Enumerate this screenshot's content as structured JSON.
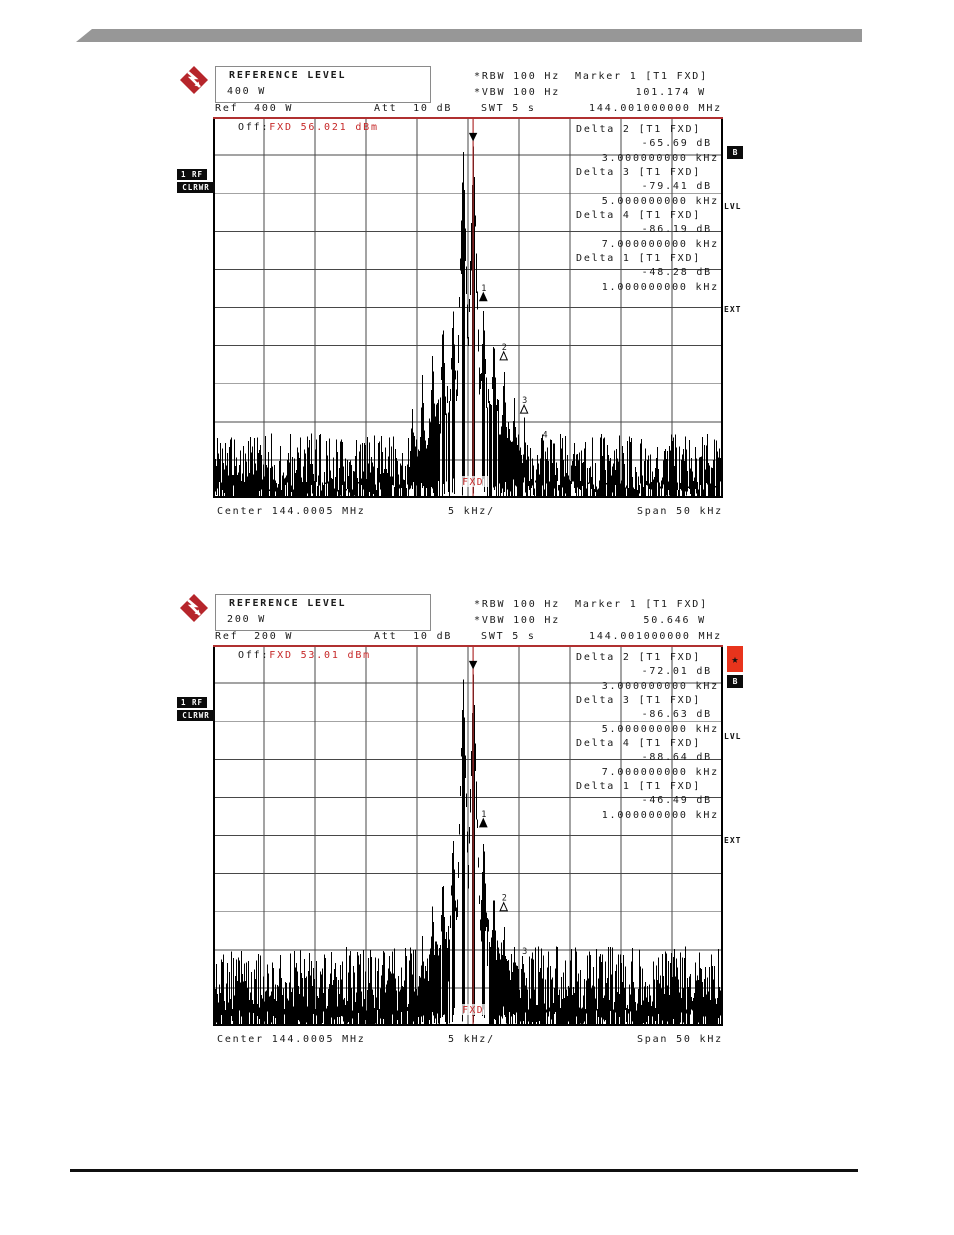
{
  "page": {
    "banner_color": "#979797",
    "footer_rule_color": "#101010",
    "accent_red_line": "#b03030",
    "accent_red_text": "#c62828"
  },
  "charts": [
    {
      "seed": 7,
      "logo_icon": "rohde-schwarz-logo",
      "header": {
        "ref_level_label": "REFERENCE LEVEL",
        "ref_level_value": "400 W",
        "ref_line": "Ref  400 W",
        "att": "Att  10 dB",
        "rbw": "*RBW 100 Hz",
        "vbw": "*VBW 100 Hz",
        "swt": "SWT 5 s",
        "marker_title": "Marker 1 [T1 FXD]",
        "marker_power": "101.174 W",
        "marker_freq": "144.001000000 MHz"
      },
      "off_label": "Off:",
      "off_value": "FXD 56.021 dBm",
      "fxd_label": "FXD",
      "deltas": [
        {
          "name": "Delta 2 [T1 FXD]",
          "db": "-65.69 dB",
          "freq": "3.000000000 kHz"
        },
        {
          "name": "Delta 3 [T1 FXD]",
          "db": "-79.41 dB",
          "freq": "5.000000000 kHz"
        },
        {
          "name": "Delta 4 [T1 FXD]",
          "db": "-86.19 dB",
          "freq": "7.000000000 kHz"
        },
        {
          "name": "Delta 1 [T1 FXD]",
          "db": "-48.28 dB",
          "freq": "1.000000000 kHz"
        }
      ],
      "axis": {
        "center": "Center 144.0005 MHz",
        "per_div": "5 kHz/",
        "span": "Span 50 kHz"
      },
      "side_left": [
        "1 RF",
        "CLRWR"
      ],
      "side_right": {
        "b": "B",
        "lvl": "LVL",
        "ext": "EXT"
      },
      "has_star": false,
      "markers": [
        {
          "n": "1",
          "k": 1.5,
          "db": 48.5,
          "tri": "filled"
        },
        {
          "n": "2",
          "k": 3.5,
          "db": 64,
          "tri": "hollow"
        },
        {
          "n": "3",
          "k": 5.5,
          "db": 78,
          "tri": "hollow"
        },
        {
          "n": "4",
          "k": 7.5,
          "db": 87,
          "tri": "none"
        }
      ],
      "render": {
        "noise": [
          83,
          98
        ],
        "skirt_base": 58,
        "skirt_slope": 5.5,
        "tones": [
          {
            "k": -0.5,
            "db": 8.2
          },
          {
            "k": 0.5,
            "db": 6.8
          }
        ],
        "peaks": [
          [
            1.5,
            48.5
          ],
          [
            -1.5,
            48.5
          ],
          [
            2.5,
            56
          ],
          [
            -2.5,
            52
          ],
          [
            3.5,
            64
          ],
          [
            -3.5,
            60
          ],
          [
            4.5,
            71
          ],
          [
            -4.5,
            66
          ],
          [
            5.5,
            78
          ],
          [
            -5.5,
            74
          ]
        ]
      }
    },
    {
      "seed": 13,
      "logo_icon": "rohde-schwarz-logo",
      "header": {
        "ref_level_label": "REFERENCE LEVEL",
        "ref_level_value": "200 W",
        "ref_line": "Ref  200 W",
        "att": "Att  10 dB",
        "rbw": "*RBW 100 Hz",
        "vbw": "*VBW 100 Hz",
        "swt": "SWT 5 s",
        "marker_title": "Marker 1 [T1 FXD]",
        "marker_power": "50.646 W",
        "marker_freq": "144.001000000 MHz"
      },
      "off_label": "Off:",
      "off_value": "FXD 53.01 dBm",
      "fxd_label": "FXD",
      "deltas": [
        {
          "name": "Delta 2 [T1 FXD]",
          "db": "-72.01 dB",
          "freq": "3.000000000 kHz"
        },
        {
          "name": "Delta 3 [T1 FXD]",
          "db": "-86.63 dB",
          "freq": "5.000000000 kHz"
        },
        {
          "name": "Delta 4 [T1 FXD]",
          "db": "-88.64 dB",
          "freq": "7.000000000 kHz"
        },
        {
          "name": "Delta 1 [T1 FXD]",
          "db": "-46.49 dB",
          "freq": "1.000000000 kHz"
        }
      ],
      "axis": {
        "center": "Center 144.0005 MHz",
        "per_div": "5 kHz/",
        "span": "Span 50 kHz"
      },
      "side_left": [
        "1 RF",
        "CLRWR"
      ],
      "side_right": {
        "b": "B",
        "lvl": "LVL",
        "ext": "EXT"
      },
      "has_star": true,
      "star_glyph": "★",
      "markers": [
        {
          "n": "1",
          "k": 1.5,
          "db": 48,
          "tri": "filled"
        },
        {
          "n": "2",
          "k": 3.5,
          "db": 70,
          "tri": "hollow"
        },
        {
          "n": "3",
          "k": 5.5,
          "db": 84,
          "tri": "none"
        }
      ],
      "render": {
        "noise": [
          79,
          96
        ],
        "skirt_base": 60,
        "skirt_slope": 5.5,
        "tones": [
          {
            "k": -0.5,
            "db": 8.0
          },
          {
            "k": 0.5,
            "db": 6.8
          }
        ],
        "peaks": [
          [
            1.5,
            48
          ],
          [
            -1.5,
            48
          ],
          [
            2.5,
            62
          ],
          [
            -2.5,
            58
          ],
          [
            3.5,
            70
          ],
          [
            -3.5,
            66
          ],
          [
            4.5,
            78
          ],
          [
            -4.5,
            74
          ]
        ]
      }
    }
  ],
  "chart_data": [
    {
      "type": "line",
      "title": "Spectrum analyzer screen 1 (Ref 400 W)",
      "x_axis": {
        "center_mhz": 144.0005,
        "span_khz": 50,
        "scale_khz_per_div": 5,
        "label_left": "Center 144.0005 MHz",
        "label_mid": "5 kHz/",
        "label_right": "Span 50 kHz"
      },
      "y_axis": {
        "reference_level_w": 400,
        "scale_db_per_div": 10,
        "divisions": 10
      },
      "settings": {
        "rbw_hz": 100,
        "vbw_hz": 100,
        "sweep_time_s": 5,
        "att_db": 10,
        "ref_offset_dbm": 56.021
      },
      "marker_1": {
        "freq_mhz": 144.001,
        "power_w": 101.174,
        "reference": "T1 FXD"
      },
      "delta_markers": [
        {
          "marker": "Delta 1",
          "offset_khz": 1.0,
          "level_db": -48.28
        },
        {
          "marker": "Delta 2",
          "offset_khz": 3.0,
          "level_db": -65.69
        },
        {
          "marker": "Delta 3",
          "offset_khz": 5.0,
          "level_db": -79.41
        },
        {
          "marker": "Delta 4",
          "offset_khz": 7.0,
          "level_db": -86.19
        }
      ],
      "tones_khz_from_center": [
        -0.5,
        0.5
      ],
      "noise_floor_db_below_ref": [
        -83,
        -98
      ],
      "grid": "10x10 on"
    },
    {
      "type": "line",
      "title": "Spectrum analyzer screen 2 (Ref 200 W)",
      "x_axis": {
        "center_mhz": 144.0005,
        "span_khz": 50,
        "scale_khz_per_div": 5,
        "label_left": "Center 144.0005 MHz",
        "label_mid": "5 kHz/",
        "label_right": "Span 50 kHz"
      },
      "y_axis": {
        "reference_level_w": 200,
        "scale_db_per_div": 10,
        "divisions": 10
      },
      "settings": {
        "rbw_hz": 100,
        "vbw_hz": 100,
        "sweep_time_s": 5,
        "att_db": 10,
        "ref_offset_dbm": 53.01
      },
      "marker_1": {
        "freq_mhz": 144.001,
        "power_w": 50.646,
        "reference": "T1 FXD"
      },
      "delta_markers": [
        {
          "marker": "Delta 1",
          "offset_khz": 1.0,
          "level_db": -46.49
        },
        {
          "marker": "Delta 2",
          "offset_khz": 3.0,
          "level_db": -72.01
        },
        {
          "marker": "Delta 3",
          "offset_khz": 5.0,
          "level_db": -86.63
        },
        {
          "marker": "Delta 4",
          "offset_khz": 7.0,
          "level_db": -88.64
        }
      ],
      "tones_khz_from_center": [
        -0.5,
        0.5
      ],
      "noise_floor_db_below_ref": [
        -79,
        -96
      ],
      "grid": "10x10 on"
    }
  ]
}
